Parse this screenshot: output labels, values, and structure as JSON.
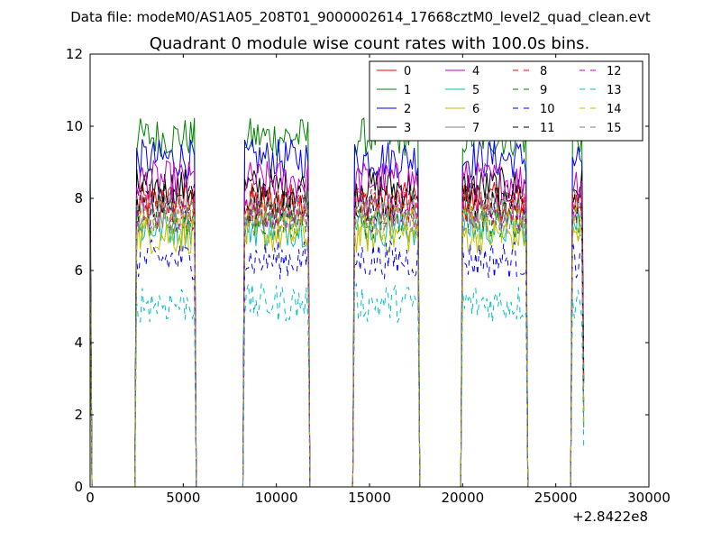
{
  "suptitle": "Data file: modeM0/AS1A05_208T01_9000002614_17668cztM0_level2_quad_clean.evt",
  "chart_data": {
    "type": "line",
    "title": "Quadrant 0 module wise count rates with 100.0s bins.",
    "xlabel": "",
    "ylabel": "",
    "xlim": [
      0,
      30000
    ],
    "ylim": [
      0,
      12
    ],
    "x_offset_label": "+2.8422e8",
    "x_ticks": [
      0,
      5000,
      10000,
      15000,
      20000,
      25000,
      30000
    ],
    "x_tick_labels": [
      "0",
      "5000",
      "10000",
      "15000",
      "20000",
      "25000",
      "30000"
    ],
    "y_ticks": [
      0,
      2,
      4,
      6,
      8,
      10,
      12
    ],
    "y_tick_labels": [
      "0",
      "2",
      "4",
      "6",
      "8",
      "10",
      "12"
    ],
    "bin_width": 100,
    "on_segments": [
      [
        0,
        100
      ],
      [
        2400,
        5700
      ],
      [
        8200,
        11800
      ],
      [
        14100,
        17700
      ],
      [
        19900,
        23500
      ],
      [
        25800,
        26500
      ]
    ],
    "legend": {
      "placement": "top-right",
      "ncol": 4
    },
    "series": [
      {
        "name": "0",
        "color": "#ff0000",
        "dash": "solid",
        "mean": 7.9
      },
      {
        "name": "1",
        "color": "#008000",
        "dash": "solid",
        "mean": 9.7
      },
      {
        "name": "2",
        "color": "#0000ff",
        "dash": "solid",
        "mean": 9.1
      },
      {
        "name": "3",
        "color": "#000000",
        "dash": "solid",
        "mean": 8.3
      },
      {
        "name": "4",
        "color": "#bf00bf",
        "dash": "solid",
        "mean": 8.5
      },
      {
        "name": "5",
        "color": "#00bfbf",
        "dash": "solid",
        "mean": 7.2
      },
      {
        "name": "6",
        "color": "#bfbf00",
        "dash": "solid",
        "mean": 7.0
      },
      {
        "name": "7",
        "color": "#808080",
        "dash": "solid",
        "mean": 7.7
      },
      {
        "name": "8",
        "color": "#ff0000",
        "dash": "dashed",
        "mean": 7.8
      },
      {
        "name": "9",
        "color": "#008000",
        "dash": "dashed",
        "mean": 7.4
      },
      {
        "name": "10",
        "color": "#0000ff",
        "dash": "dashed",
        "mean": 6.3
      },
      {
        "name": "11",
        "color": "#000000",
        "dash": "dashed",
        "mean": 7.9
      },
      {
        "name": "12",
        "color": "#bf00bf",
        "dash": "dashed",
        "mean": 7.6
      },
      {
        "name": "13",
        "color": "#00bfbf",
        "dash": "dashed",
        "mean": 5.1
      },
      {
        "name": "14",
        "color": "#bfbf00",
        "dash": "dashed",
        "mean": 7.3
      },
      {
        "name": "15",
        "color": "#808080",
        "dash": "dashed",
        "mean": 7.5
      }
    ]
  }
}
